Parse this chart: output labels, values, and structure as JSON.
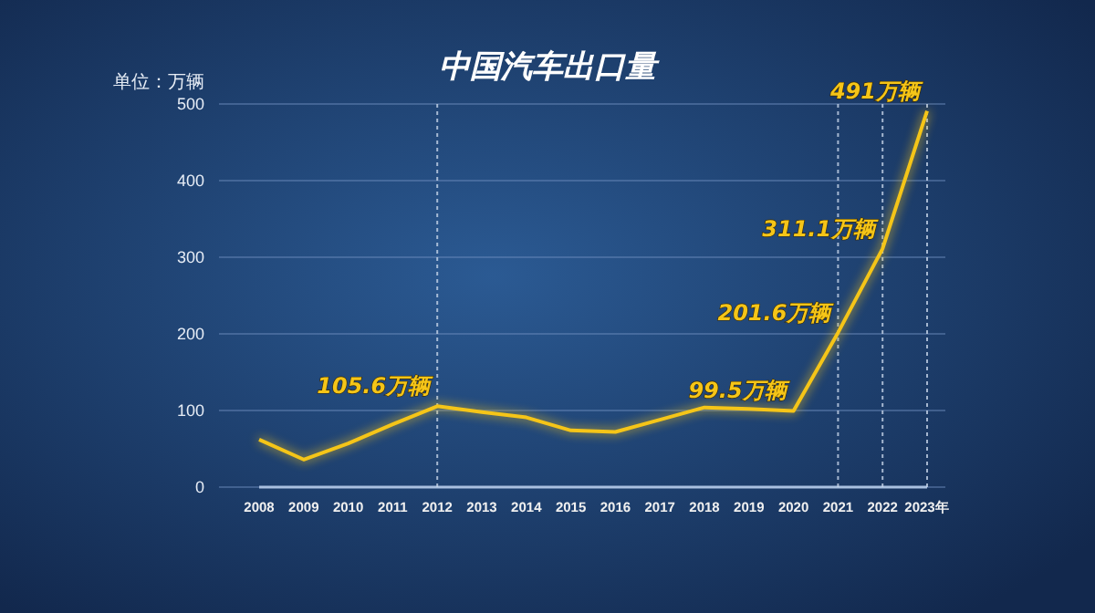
{
  "chart_data": {
    "type": "line",
    "title": "中国汽车出口量",
    "ylabel": "单位：万辆",
    "categories": [
      "2008",
      "2009",
      "2010",
      "2011",
      "2012",
      "2013",
      "2014",
      "2015",
      "2016",
      "2017",
      "2018",
      "2019",
      "2020",
      "2021",
      "2022",
      "2023年"
    ],
    "series": [
      {
        "color": "#f5c518",
        "values": [
          62,
          36,
          57,
          82,
          105.6,
          98,
          91,
          74,
          72,
          88,
          104,
          102,
          99.5,
          201.6,
          311.1,
          491
        ],
        "value_labels": [
          null,
          null,
          null,
          null,
          "105.6万辆",
          null,
          null,
          null,
          null,
          null,
          null,
          null,
          "99.5万辆",
          "201.6万辆",
          "311.1万辆",
          "491万辆"
        ]
      }
    ],
    "ylim": [
      0,
      500
    ],
    "yticks": [
      0,
      100,
      200,
      300,
      400,
      500
    ],
    "grid": "y",
    "marker": "none",
    "line_style": "solid",
    "ref_lines": [
      {
        "axis": "x",
        "value": "2012",
        "line_style": "dotted"
      },
      {
        "axis": "x",
        "value": "2021",
        "line_style": "dotted"
      },
      {
        "axis": "x",
        "value": "2022",
        "line_style": "dotted"
      },
      {
        "axis": "x",
        "value": "2023年",
        "line_style": "dotted"
      }
    ]
  }
}
